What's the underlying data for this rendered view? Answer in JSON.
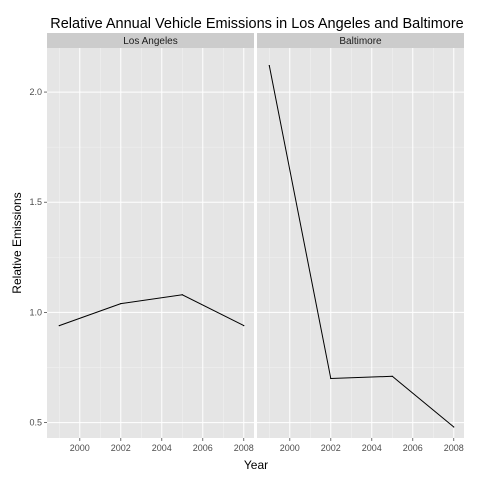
{
  "chart_data": {
    "type": "line",
    "title": "Relative Annual Vehicle Emissions in Los Angeles and Baltimore",
    "xlabel": "Year",
    "ylabel": "Relative Emissions",
    "xlim": [
      1998.4,
      2008.5
    ],
    "ylim": [
      0.43,
      2.2
    ],
    "xticks": [
      2000,
      2002,
      2004,
      2006,
      2008
    ],
    "yticks": [
      0.5,
      1.0,
      1.5,
      2.0
    ],
    "ytick_labels": [
      "0.5",
      "1.0",
      "1.5",
      "2.0"
    ],
    "grid": true,
    "facets": [
      {
        "name": "Los Angeles",
        "x": [
          1999,
          2002,
          2005,
          2008
        ],
        "y": [
          0.94,
          1.04,
          1.08,
          0.94
        ]
      },
      {
        "name": "Baltimore",
        "x": [
          1999,
          2002,
          2005,
          2008
        ],
        "y": [
          2.12,
          0.7,
          0.71,
          0.48
        ]
      }
    ],
    "colors": {
      "panel_bg": "#e5e5e5",
      "strip_bg": "#cccccc",
      "grid": "#ffffff",
      "line": "#000000"
    }
  }
}
